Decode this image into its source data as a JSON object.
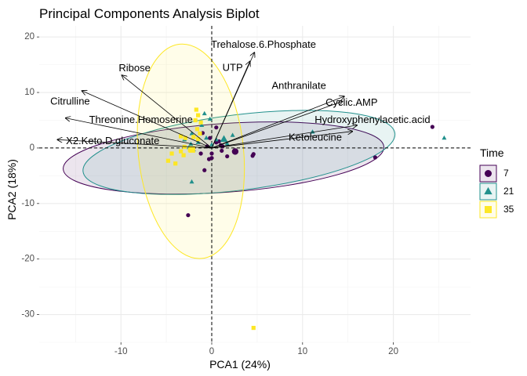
{
  "chart_data": {
    "type": "scatter",
    "title": "Principal Components Analysis Biplot",
    "xlabel": "PCA1 (24%)",
    "ylabel": "PCA2 (18%)",
    "xlim": [
      -19,
      28.5
    ],
    "ylim": [
      -35,
      22
    ],
    "x_ticks": [
      -10,
      0,
      10,
      20
    ],
    "y_ticks": [
      -30,
      -20,
      -10,
      0,
      10,
      20
    ],
    "grid": true,
    "reference_lines": {
      "x": 0,
      "y": 0
    },
    "legend": {
      "title": "Time",
      "position": "right",
      "entries": [
        {
          "label": "7",
          "color": "#440154",
          "shape": "circle"
        },
        {
          "label": "21",
          "color": "#21908C",
          "shape": "triangle"
        },
        {
          "label": "35",
          "color": "#FDE725",
          "shape": "square"
        }
      ]
    },
    "ellipses": [
      {
        "group": "7",
        "cx": 1.3,
        "cy": -1.8,
        "rx": 17.7,
        "ry": 6.2,
        "angle_deg": -4,
        "fill": "#440154",
        "stroke": "#440154"
      },
      {
        "group": "21",
        "cx": 3.0,
        "cy": -0.8,
        "rx": 17.3,
        "ry": 6.8,
        "angle_deg": -7,
        "fill": "#21908C",
        "stroke": "#21908C"
      },
      {
        "group": "35",
        "cx": -2.3,
        "cy": -0.6,
        "rx": 5.8,
        "ry": 19.4,
        "angle_deg": -6,
        "fill": "#FDE725",
        "stroke": "#FDE725"
      }
    ],
    "loadings": [
      {
        "label": "Trehalose.6.Phosphate",
        "x": 4.7,
        "y": 17.2,
        "lx": 5.7,
        "ly": 18.5
      },
      {
        "label": "UTP",
        "x": 4.2,
        "y": 15.6,
        "lx": 2.3,
        "ly": 14.4
      },
      {
        "label": "Ribose",
        "x": -9.9,
        "y": 13.1,
        "lx": -8.5,
        "ly": 14.3
      },
      {
        "label": "Citrulline",
        "x": -14.3,
        "y": 10.3,
        "lx": -15.6,
        "ly": 8.3
      },
      {
        "label": "Threonine.Homoserine",
        "x": -16.1,
        "y": 5.4,
        "lx": -7.8,
        "ly": 5.0
      },
      {
        "label": "X2.Keto.D.gluconate",
        "x": -17.0,
        "y": 1.5,
        "lx": -10.9,
        "ly": 1.2
      },
      {
        "label": "Anthranilate",
        "x": 14.6,
        "y": 9.3,
        "lx": 9.6,
        "ly": 11.1
      },
      {
        "label": "Cyclic.AMP",
        "x": 14.4,
        "y": 8.4,
        "lx": 15.4,
        "ly": 8.1
      },
      {
        "label": "Hydroxyphenylacetic.acid",
        "x": 16.0,
        "y": 4.1,
        "lx": 17.7,
        "ly": 5.0
      },
      {
        "label": "Ketoleucine",
        "x": 15.5,
        "y": 3.0,
        "lx": 11.4,
        "ly": 1.8
      }
    ],
    "series": [
      {
        "name": "7",
        "points": [
          [
            0.5,
            3.7
          ],
          [
            -1.0,
            2.7
          ],
          [
            -0.2,
            1.8
          ],
          [
            -1.2,
            -1.0
          ],
          [
            0.5,
            1.0
          ],
          [
            0.0,
            -1.0
          ],
          [
            1.0,
            0.5
          ],
          [
            1.1,
            -0.5
          ],
          [
            0.0,
            -1.8
          ],
          [
            -0.3,
            -2.0
          ],
          [
            1.7,
            -1.5
          ],
          [
            -0.8,
            -4.0
          ],
          [
            -2.6,
            -12.1
          ],
          [
            4.6,
            -1.1
          ],
          [
            4.5,
            -1.4
          ],
          [
            18.0,
            -1.7
          ],
          [
            24.3,
            3.8
          ],
          [
            0.8,
            1.2
          ],
          [
            -0.5,
            0.3
          ],
          [
            1.2,
            0.3
          ]
        ]
      },
      {
        "name": "21",
        "points": [
          [
            -0.8,
            6.2
          ],
          [
            -0.2,
            5.2
          ],
          [
            -1.1,
            4.1
          ],
          [
            -0.6,
            1.8
          ],
          [
            -2.2,
            2.6
          ],
          [
            -3.0,
            1.5
          ],
          [
            -2.3,
            0.7
          ],
          [
            -2.5,
            0.1
          ],
          [
            -2.0,
            -0.3
          ],
          [
            -1.5,
            1.0
          ],
          [
            0.0,
            0.6
          ],
          [
            0.5,
            1.5
          ],
          [
            1.7,
            0.8
          ],
          [
            2.3,
            2.3
          ],
          [
            11.1,
            2.9
          ],
          [
            25.6,
            1.8
          ],
          [
            -2.2,
            -6.1
          ]
        ]
      },
      {
        "name": "35",
        "points": [
          [
            -1.7,
            6.9
          ],
          [
            -1.5,
            5.9
          ],
          [
            -1.8,
            5.0
          ],
          [
            -1.2,
            4.6
          ],
          [
            -1.6,
            3.4
          ],
          [
            -1.3,
            2.6
          ],
          [
            -2.0,
            2.0
          ],
          [
            -1.5,
            1.6
          ],
          [
            -2.9,
            1.8
          ],
          [
            -3.4,
            2.1
          ],
          [
            -3.0,
            0.2
          ],
          [
            -2.4,
            -0.3
          ],
          [
            -3.4,
            -0.6
          ],
          [
            -3.1,
            -1.3
          ],
          [
            -4.4,
            -1.0
          ],
          [
            -4.8,
            -2.3
          ],
          [
            -4.0,
            -2.8
          ],
          [
            4.6,
            -32.4
          ]
        ]
      }
    ]
  }
}
